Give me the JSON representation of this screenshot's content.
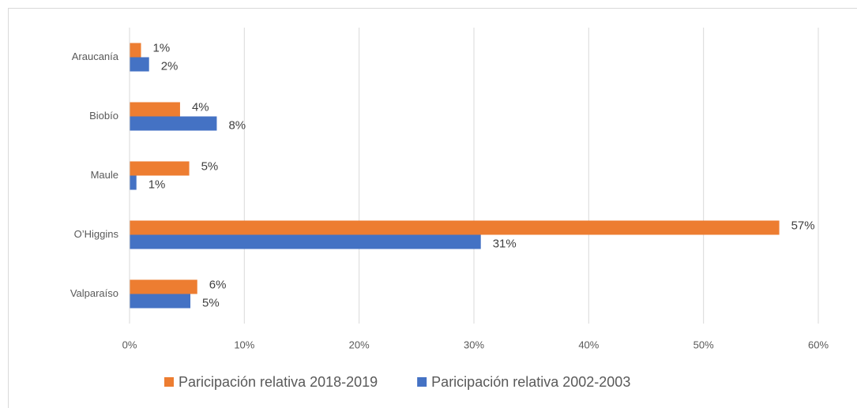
{
  "chart_data": {
    "type": "barh",
    "categories": [
      "Araucanía",
      "Biobío",
      "Maule",
      "O’Higgins",
      "Valparaíso"
    ],
    "series": [
      {
        "name": "Paricipación relativa 2018-2019",
        "color": "#ed7d31",
        "values": [
          1.0,
          4.4,
          5.2,
          56.6,
          5.9
        ],
        "value_labels": [
          "1%",
          "4%",
          "5%",
          "57%",
          "6%"
        ]
      },
      {
        "name": "Paricipación relativa 2002-2003",
        "color": "#4472c4",
        "values": [
          1.7,
          7.6,
          0.6,
          30.6,
          5.3
        ],
        "value_labels": [
          "2%",
          "8%",
          "1%",
          "31%",
          "5%"
        ]
      }
    ],
    "xlim": [
      0,
      60
    ],
    "xticks": [
      {
        "value": 0,
        "label": "0%"
      },
      {
        "value": 10,
        "label": "10%"
      },
      {
        "value": 20,
        "label": "20%"
      },
      {
        "value": 30,
        "label": "30%"
      },
      {
        "value": 40,
        "label": "40%"
      },
      {
        "value": 50,
        "label": "50%"
      },
      {
        "value": 60,
        "label": "60%"
      }
    ],
    "grid": true
  }
}
